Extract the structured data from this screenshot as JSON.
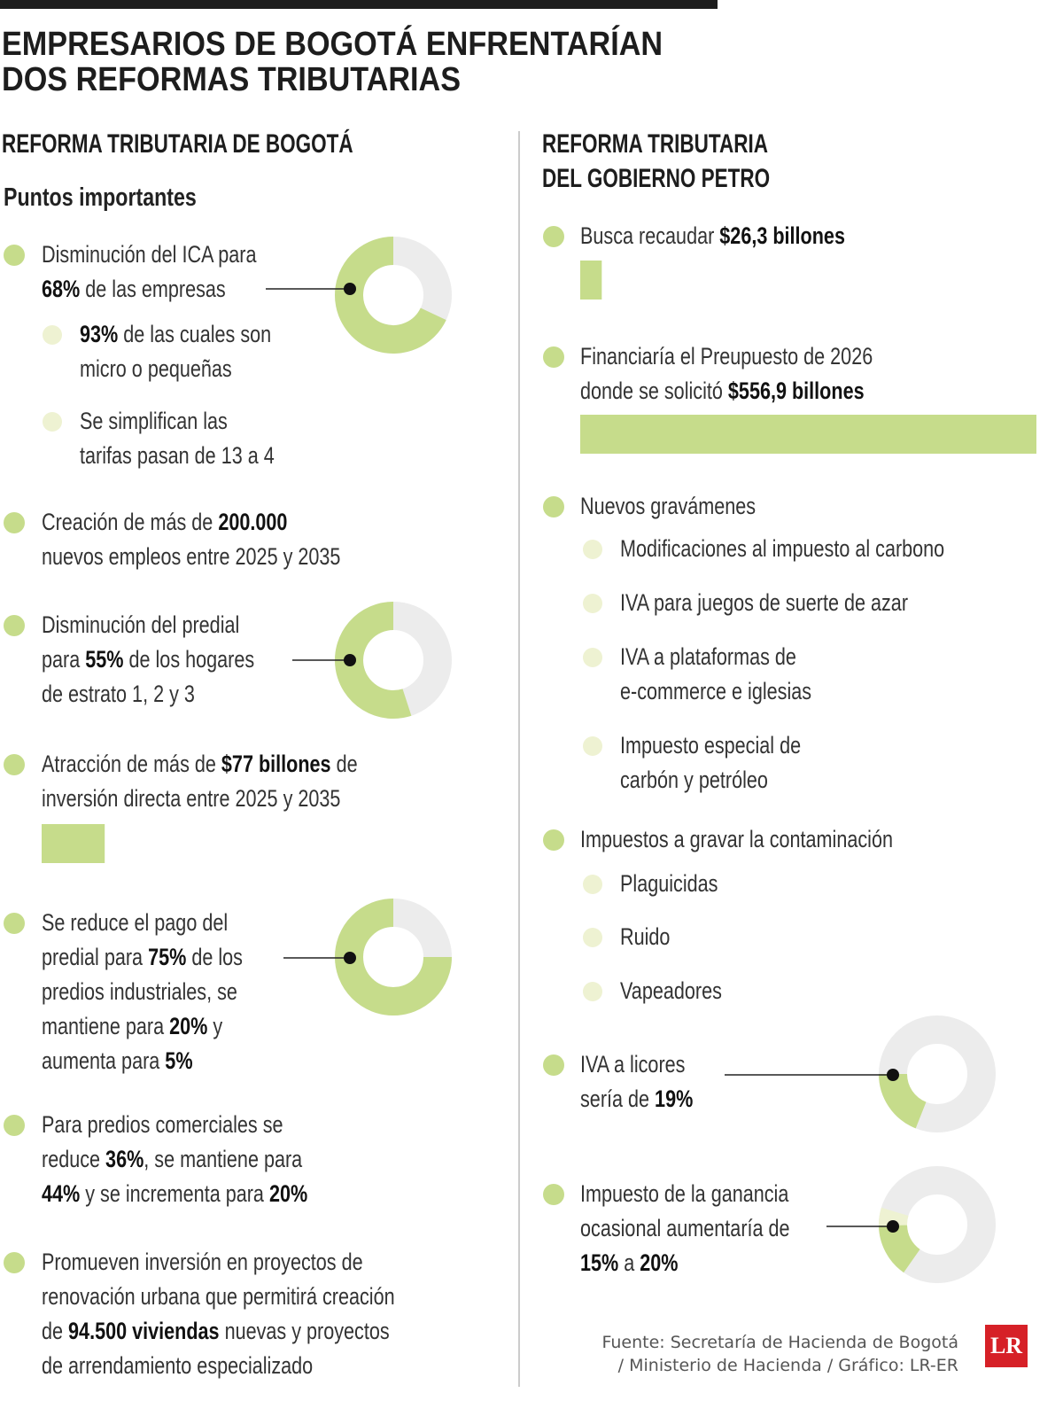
{
  "header": {
    "title": "EMPRESARIOS DE BOGOTÁ ENFRENTARÍAN DOS REFORMAS TRIBUTARIAS"
  },
  "left": {
    "heading": "REFORMA TRIBUTARIA DE BOGOTÁ",
    "subheading": "Puntos importantes",
    "items": [
      {
        "level": 1,
        "lines": [
          [
            "Disminución del ICA para"
          ],
          [
            {
              "bold": "68%"
            },
            " de las empresas"
          ]
        ],
        "donut": [
          68
        ]
      },
      {
        "level": 2,
        "lines": [
          [
            {
              "bold": "93%"
            },
            " de las cuales son"
          ],
          [
            "micro o pequeñas"
          ]
        ]
      },
      {
        "level": 2,
        "lines": [
          [
            "Se simplifican las"
          ],
          [
            "tarifas pasan de 13 a 4"
          ]
        ]
      },
      {
        "level": 1,
        "lines": [
          [
            "Creación de más de ",
            {
              "bold": "200.000"
            }
          ],
          [
            "nuevos empleos entre 2025 y 2035"
          ]
        ]
      },
      {
        "level": 1,
        "lines": [
          [
            "Disminución del predial"
          ],
          [
            "para ",
            {
              "bold": "55%"
            },
            " de los hogares"
          ],
          [
            "de estrato 1, 2 y 3"
          ]
        ],
        "donut": [
          55
        ]
      },
      {
        "level": 1,
        "lines": [
          [
            "Atracción de más de ",
            {
              "bold": "$77 billones"
            },
            " de"
          ],
          [
            "inversión directa entre 2025 y 2035"
          ]
        ],
        "bar": 77
      },
      {
        "level": 1,
        "lines": [
          [
            "Se reduce el pago del"
          ],
          [
            "predial para ",
            {
              "bold": "75%"
            },
            " de los"
          ],
          [
            "predios industriales, se"
          ],
          [
            "mantiene para ",
            {
              "bold": "20%"
            },
            " y"
          ],
          [
            "aumenta para ",
            {
              "bold": "5%"
            }
          ]
        ],
        "donut": [
          75
        ]
      },
      {
        "level": 1,
        "lines": [
          [
            "Para predios comerciales se"
          ],
          [
            "reduce ",
            {
              "bold": "36%"
            },
            ", se mantiene para"
          ],
          [
            {
              "bold": "44%"
            },
            " y se incrementa para ",
            {
              "bold": "20%"
            }
          ]
        ]
      },
      {
        "level": 1,
        "lines": [
          [
            "Promueven inversión en proyectos de"
          ],
          [
            "renovación urbana que permitirá creación"
          ],
          [
            "de ",
            {
              "bold": "94.500 viviendas"
            },
            " nuevas y proyectos"
          ],
          [
            "de arrendamiento especializado"
          ]
        ]
      }
    ]
  },
  "right": {
    "heading": [
      "REFORMA TRIBUTARIA",
      "DEL GOBIERNO PETRO"
    ],
    "items": [
      {
        "level": 1,
        "lines": [
          [
            "Busca recaudar ",
            {
              "bold": "$26,3 billones"
            }
          ]
        ],
        "bar": 26.3
      },
      {
        "level": 1,
        "lines": [
          [
            "Financiaría el Preupuesto de 2026"
          ],
          [
            "donde se solicitó ",
            {
              "bold": "$556,9 billones"
            }
          ]
        ],
        "bar": 556.9
      },
      {
        "level": 1,
        "lines": [
          [
            "Nuevos gravámenes"
          ]
        ]
      },
      {
        "level": 2,
        "lines": [
          [
            "Modificaciones al impuesto al carbono"
          ]
        ]
      },
      {
        "level": 2,
        "lines": [
          [
            "IVA para juegos de suerte de azar"
          ]
        ]
      },
      {
        "level": 2,
        "lines": [
          [
            "IVA a plataformas de"
          ],
          [
            "e-commerce e iglesias"
          ]
        ]
      },
      {
        "level": 2,
        "lines": [
          [
            "Impuesto especial de"
          ],
          [
            "carbón y petróleo"
          ]
        ]
      },
      {
        "level": 1,
        "lines": [
          [
            "Impuestos a gravar la contaminación"
          ]
        ]
      },
      {
        "level": 2,
        "lines": [
          [
            "Plaguicidas"
          ]
        ]
      },
      {
        "level": 2,
        "lines": [
          [
            "Ruido"
          ]
        ]
      },
      {
        "level": 2,
        "lines": [
          [
            "Vapeadores"
          ]
        ]
      },
      {
        "level": 1,
        "lines": [
          [
            "IVA a licores"
          ],
          [
            "sería de ",
            {
              "bold": "19%"
            }
          ]
        ],
        "donut": [
          19
        ]
      },
      {
        "level": 1,
        "lines": [
          [
            "Impuesto de la ganancia"
          ],
          [
            "ocasional aumentaría de"
          ],
          [
            {
              "bold": "15%"
            },
            " a ",
            {
              "bold": "20%"
            }
          ]
        ],
        "donut": [
          15,
          20
        ]
      }
    ]
  },
  "footer": {
    "source": [
      "Fuente: Secretaría de Hacienda de Bogotá",
      "/ Ministerio de Hacienda / Gráfico: LR-ER"
    ],
    "logo": "LR"
  }
}
